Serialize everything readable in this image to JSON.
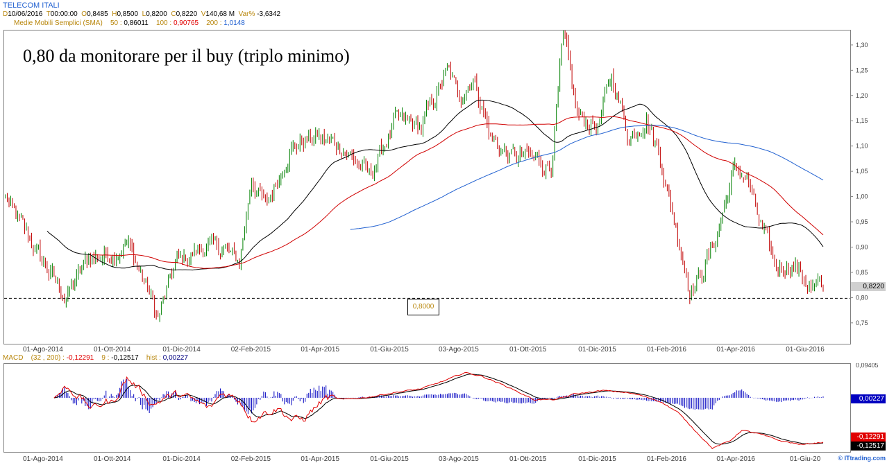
{
  "header": {
    "title": "TELECOM ITALI",
    "d_label": "D",
    "d_value": "10/06/2016",
    "t_label": "T",
    "t_value": "00:00:00",
    "o_label": "O",
    "o_value": "0,8485",
    "h_label": "H",
    "h_value": "0,8500",
    "l_label": "L",
    "l_value": "0,8200",
    "c_label": "C",
    "c_value": "0,8220",
    "v_label": "V",
    "v_value": "140,68 M",
    "var_label": "Var%",
    "var_value": "-3,6342"
  },
  "sma_legend": {
    "label": "Medie Mobili Semplici (SMA)",
    "p50_label": "50 :",
    "p50_value": "0,86011",
    "p100_label": "100 :",
    "p100_value": "0,90765",
    "p200_label": "200 :",
    "p200_value": "1,0148"
  },
  "macd_legend": {
    "label": "MACD",
    "params": "(32 , 200) :",
    "macd_value": "-0,12291",
    "sig_label": "9 :",
    "sig_value": "-0,12517",
    "hist_label": "hist :",
    "hist_value": "0,00227"
  },
  "annotation": "0,80 da monitorare per il buy (triplo minimo)",
  "level_box": "0,8000",
  "last_price_tag": "0,8220",
  "hist_tag": "0,00227",
  "macd_tag": "-0,12291",
  "signal_tag": "-0,12517",
  "watermark": "© ITtrading.com",
  "colors": {
    "price_up": "#008000",
    "price_down": "#c00000",
    "sma50": "#000000",
    "sma100": "#d00000",
    "sma200": "#2060d0",
    "macd": "#e00000",
    "signal": "#000000",
    "hist": "#0000c0"
  },
  "chart_data": [
    {
      "type": "line",
      "name": "price",
      "y_ticks": [
        "1,30",
        "1,25",
        "1,20",
        "1,15",
        "1,10",
        "1,05",
        "1,00",
        "0,95",
        "0,90",
        "0,85",
        "0,80",
        "0,75"
      ],
      "y_tick_values": [
        1.3,
        1.25,
        1.2,
        1.15,
        1.1,
        1.05,
        1.0,
        0.95,
        0.9,
        0.85,
        0.8,
        0.75
      ],
      "ylim": [
        0.71,
        1.33
      ],
      "x_ticks": [
        "01-Ago-2014",
        "01-Ott-2014",
        "01-Dic-2014",
        "02-Feb-2015",
        "01-Apr-2015",
        "01-Giu-2015",
        "03-Ago-2015",
        "01-Ott-2015",
        "01-Dic-2015",
        "01-Feb-2016",
        "01-Apr-2016",
        "01-Giu-2016"
      ],
      "x_tick_index": [
        22,
        62,
        102,
        142,
        182,
        222,
        262,
        302,
        342,
        382,
        422,
        462
      ],
      "n_bars": 473,
      "close_anchors": [
        [
          0,
          1.0
        ],
        [
          8,
          0.95
        ],
        [
          22,
          0.87
        ],
        [
          35,
          0.8
        ],
        [
          48,
          0.88
        ],
        [
          62,
          0.89
        ],
        [
          70,
          0.91
        ],
        [
          82,
          0.82
        ],
        [
          88,
          0.76
        ],
        [
          98,
          0.87
        ],
        [
          115,
          0.9
        ],
        [
          125,
          0.9
        ],
        [
          135,
          0.87
        ],
        [
          142,
          1.04
        ],
        [
          150,
          0.98
        ],
        [
          165,
          1.1
        ],
        [
          180,
          1.12
        ],
        [
          195,
          1.1
        ],
        [
          210,
          1.04
        ],
        [
          225,
          1.15
        ],
        [
          240,
          1.14
        ],
        [
          255,
          1.25
        ],
        [
          262,
          1.2
        ],
        [
          270,
          1.24
        ],
        [
          280,
          1.12
        ],
        [
          290,
          1.08
        ],
        [
          302,
          1.08
        ],
        [
          315,
          1.06
        ],
        [
          322,
          1.32
        ],
        [
          330,
          1.16
        ],
        [
          342,
          1.14
        ],
        [
          350,
          1.24
        ],
        [
          360,
          1.12
        ],
        [
          370,
          1.16
        ],
        [
          378,
          1.08
        ],
        [
          385,
          0.97
        ],
        [
          395,
          0.82
        ],
        [
          402,
          0.85
        ],
        [
          410,
          0.92
        ],
        [
          420,
          1.05
        ],
        [
          428,
          1.04
        ],
        [
          435,
          0.95
        ],
        [
          445,
          0.86
        ],
        [
          455,
          0.87
        ],
        [
          465,
          0.82
        ],
        [
          472,
          0.822
        ]
      ],
      "sma50": {
        "last": 0.86011
      },
      "sma100": {
        "last": 0.90765
      },
      "sma200": {
        "last": 1.0148,
        "start_index": 199
      },
      "horizontal_level": 0.8
    },
    {
      "type": "line",
      "name": "macd",
      "y_ticks": [
        "0,09405"
      ],
      "y_tick_values": [
        0.09405
      ],
      "ylim": [
        -0.15,
        0.094
      ],
      "x_ticks": [
        "01-Ago-2014",
        "01-Ott-2014",
        "01-Dic-2014",
        "02-Feb-2015",
        "01-Apr-2015",
        "01-Giu-2015",
        "03-Ago-2015",
        "01-Ott-2015",
        "01-Dic-2015",
        "01-Feb-2016",
        "01-Apr-2016",
        "01-Giu-20"
      ],
      "x_tick_index": [
        22,
        62,
        102,
        142,
        182,
        222,
        262,
        302,
        342,
        382,
        422,
        462
      ],
      "macd_anchors": [
        [
          28,
          0.0
        ],
        [
          35,
          0.03
        ],
        [
          42,
          0.005
        ],
        [
          50,
          -0.03
        ],
        [
          58,
          -0.01
        ],
        [
          62,
          -0.015
        ],
        [
          70,
          0.055
        ],
        [
          78,
          0.02
        ],
        [
          85,
          -0.02
        ],
        [
          92,
          0.0
        ],
        [
          100,
          0.01
        ],
        [
          108,
          -0.005
        ],
        [
          118,
          -0.03
        ],
        [
          125,
          0.015
        ],
        [
          135,
          -0.005
        ],
        [
          142,
          -0.06
        ],
        [
          150,
          -0.04
        ],
        [
          158,
          -0.03
        ],
        [
          165,
          -0.06
        ],
        [
          172,
          -0.06
        ],
        [
          178,
          -0.03
        ],
        [
          185,
          0.0
        ],
        [
          195,
          -0.005
        ],
        [
          210,
          0.002
        ],
        [
          225,
          0.015
        ],
        [
          240,
          0.025
        ],
        [
          255,
          0.05
        ],
        [
          265,
          0.07
        ],
        [
          275,
          0.06
        ],
        [
          290,
          0.03
        ],
        [
          305,
          -0.005
        ],
        [
          318,
          -0.005
        ],
        [
          328,
          0.01
        ],
        [
          345,
          0.02
        ],
        [
          358,
          0.015
        ],
        [
          368,
          0.005
        ],
        [
          378,
          -0.01
        ],
        [
          388,
          -0.04
        ],
        [
          398,
          -0.09
        ],
        [
          408,
          -0.14
        ],
        [
          418,
          -0.12
        ],
        [
          425,
          -0.09
        ],
        [
          435,
          -0.1
        ],
        [
          448,
          -0.12
        ],
        [
          460,
          -0.13
        ],
        [
          472,
          -0.12291
        ]
      ],
      "signal_last": -0.12517,
      "hist_last": 0.00227
    }
  ]
}
